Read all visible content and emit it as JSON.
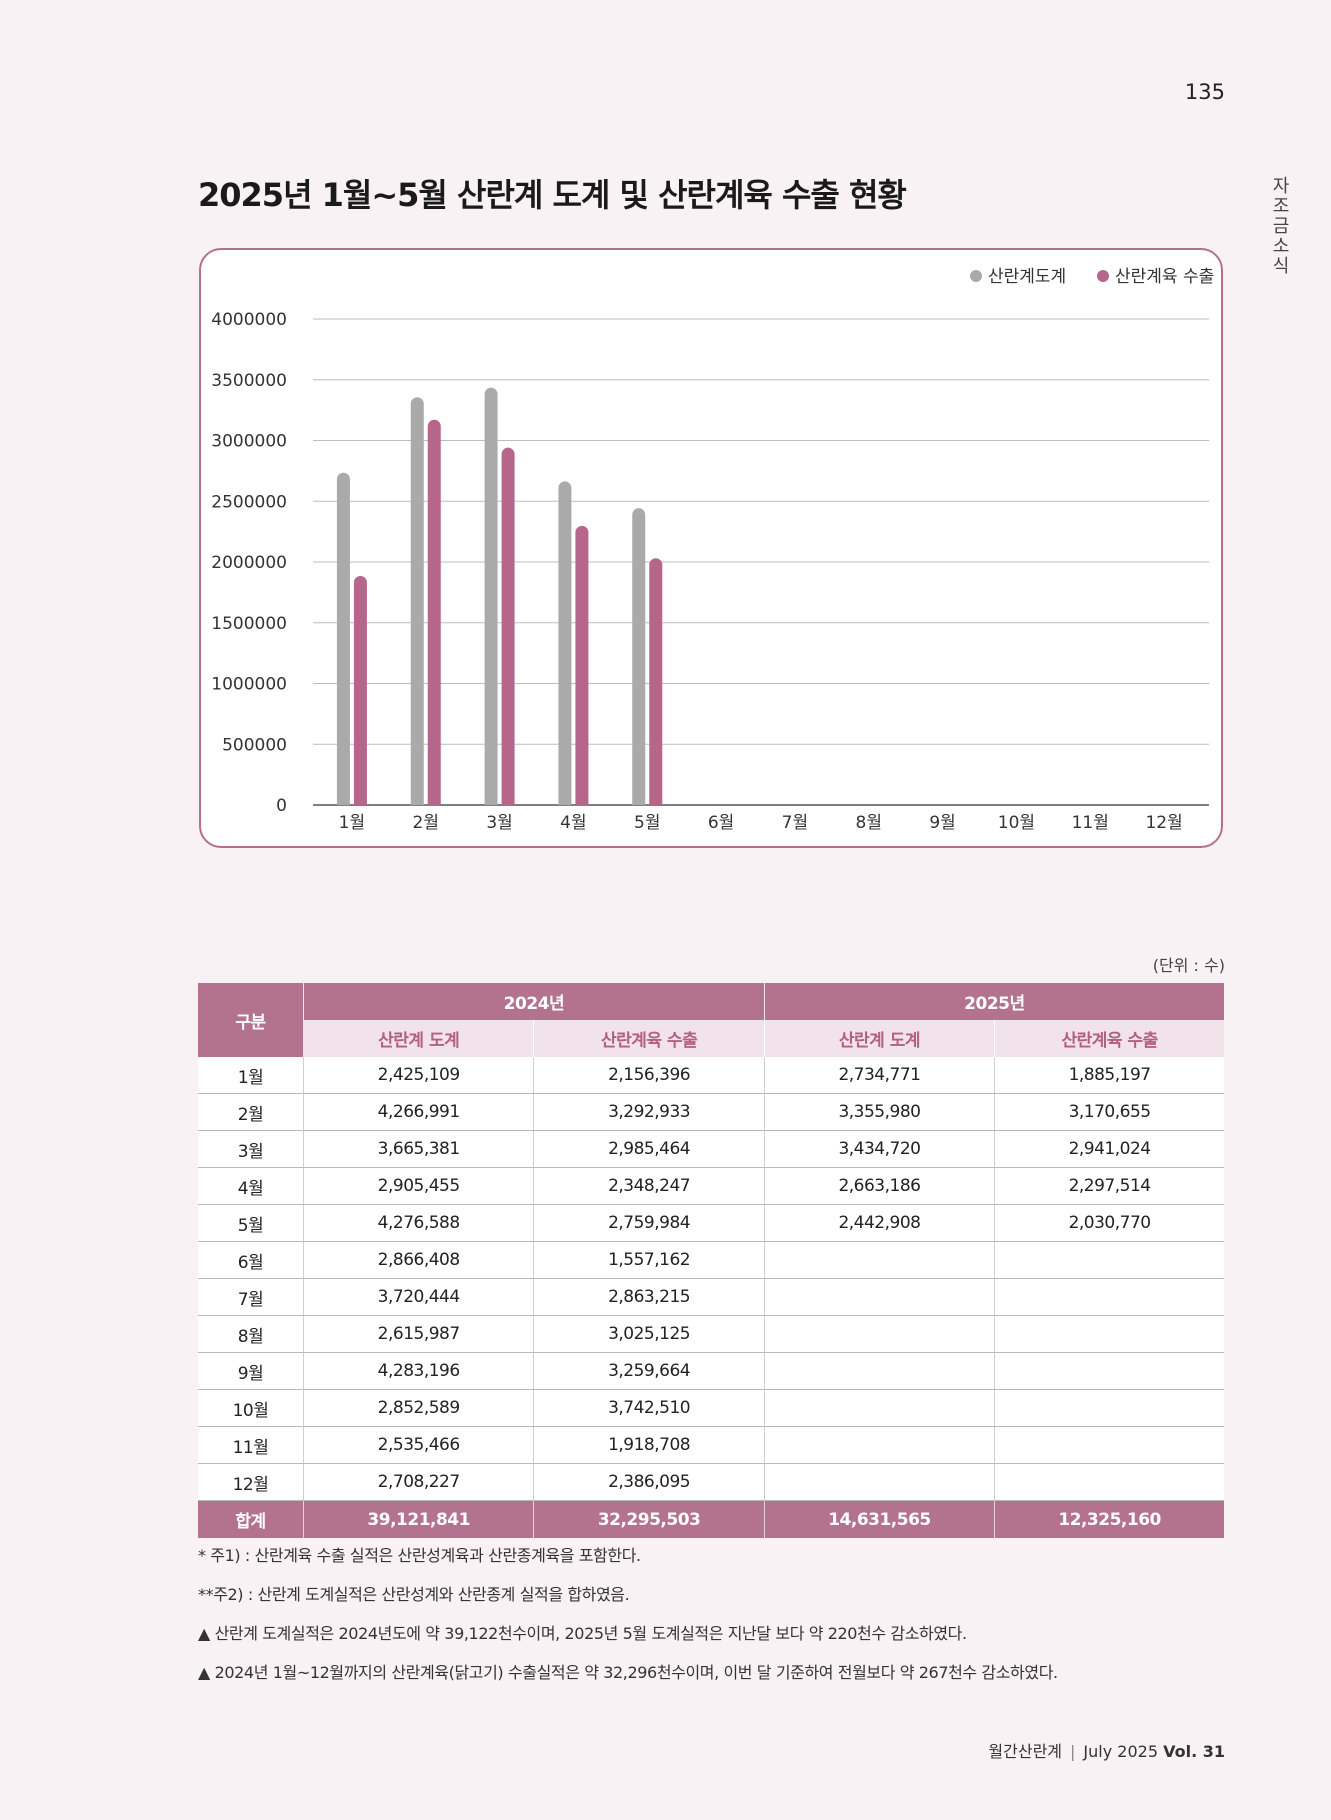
{
  "page_number": "135",
  "side_label": "자조금소식",
  "unit_note": "(단위 : 수)",
  "chart_data": {
    "type": "bar",
    "title": "2025년 1월~5월 산란계 도계 및 산란계육 수출 현황",
    "categories": [
      "1월",
      "2월",
      "3월",
      "4월",
      "5월",
      "6월",
      "7월",
      "8월",
      "9월",
      "10월",
      "11월",
      "12월"
    ],
    "series": [
      {
        "name": "산란계도계",
        "color": "#aaaaaa",
        "values": [
          2734771,
          3355980,
          3434720,
          2663186,
          2442908,
          null,
          null,
          null,
          null,
          null,
          null,
          null
        ]
      },
      {
        "name": "산란계육 수출",
        "color": "#b5668a",
        "values": [
          1885197,
          3170655,
          2941024,
          2297514,
          2030770,
          null,
          null,
          null,
          null,
          null,
          null,
          null
        ]
      }
    ],
    "ylim": [
      0,
      4000000
    ],
    "yticks": [
      "0",
      "500000",
      "1000000",
      "1500000",
      "2000000",
      "2500000",
      "3000000",
      "3500000",
      "4000000"
    ],
    "grid": true,
    "legend_position": "top-right"
  },
  "table": {
    "header_gubun": "구분",
    "years": [
      "2024년",
      "2025년"
    ],
    "sub_headers": [
      "산란계 도계",
      "산란계육 수출",
      "산란계 도계",
      "산란계육 수출"
    ],
    "rows": [
      {
        "month": "1월",
        "v2024_slaughter": "2,425,109",
        "v2024_export": "2,156,396",
        "v2025_slaughter": "2,734,771",
        "v2025_export": "1,885,197"
      },
      {
        "month": "2월",
        "v2024_slaughter": "4,266,991",
        "v2024_export": "3,292,933",
        "v2025_slaughter": "3,355,980",
        "v2025_export": "3,170,655"
      },
      {
        "month": "3월",
        "v2024_slaughter": "3,665,381",
        "v2024_export": "2,985,464",
        "v2025_slaughter": "3,434,720",
        "v2025_export": "2,941,024"
      },
      {
        "month": "4월",
        "v2024_slaughter": "2,905,455",
        "v2024_export": "2,348,247",
        "v2025_slaughter": "2,663,186",
        "v2025_export": "2,297,514"
      },
      {
        "month": "5월",
        "v2024_slaughter": "4,276,588",
        "v2024_export": "2,759,984",
        "v2025_slaughter": "2,442,908",
        "v2025_export": "2,030,770"
      },
      {
        "month": "6월",
        "v2024_slaughter": "2,866,408",
        "v2024_export": "1,557,162",
        "v2025_slaughter": "",
        "v2025_export": ""
      },
      {
        "month": "7월",
        "v2024_slaughter": "3,720,444",
        "v2024_export": "2,863,215",
        "v2025_slaughter": "",
        "v2025_export": ""
      },
      {
        "month": "8월",
        "v2024_slaughter": "2,615,987",
        "v2024_export": "3,025,125",
        "v2025_slaughter": "",
        "v2025_export": ""
      },
      {
        "month": "9월",
        "v2024_slaughter": "4,283,196",
        "v2024_export": "3,259,664",
        "v2025_slaughter": "",
        "v2025_export": ""
      },
      {
        "month": "10월",
        "v2024_slaughter": "2,852,589",
        "v2024_export": "3,742,510",
        "v2025_slaughter": "",
        "v2025_export": ""
      },
      {
        "month": "11월",
        "v2024_slaughter": "2,535,466",
        "v2024_export": "1,918,708",
        "v2025_slaughter": "",
        "v2025_export": ""
      },
      {
        "month": "12월",
        "v2024_slaughter": "2,708,227",
        "v2024_export": "2,386,095",
        "v2025_slaughter": "",
        "v2025_export": ""
      }
    ],
    "total": {
      "label": "합계",
      "v2024_slaughter": "39,121,841",
      "v2024_export": "32,295,503",
      "v2025_slaughter": "14,631,565",
      "v2025_export": "12,325,160"
    }
  },
  "notes": [
    "* 주1) : 산란계육 수출 실적은 산란성계육과 산란종계육을 포함한다.",
    "**주2) : 산란계 도계실적은 산란성계와 산란종계 실적을 합하였음.",
    "▲ 산란계 도계실적은 2024년도에 약 39,122천수이며, 2025년 5월 도계실적은 지난달 보다 약 220천수 감소하였다.",
    "▲ 2024년 1월~12월까지의 산란계육(닭고기) 수출실적은 약 32,296천수이며, 이번 달 기준하여 전월보다 약 267천수 감소하였다."
  ],
  "footer": {
    "magazine": "월간산란계",
    "issue": "July 2025",
    "vol": "Vol. 31"
  }
}
